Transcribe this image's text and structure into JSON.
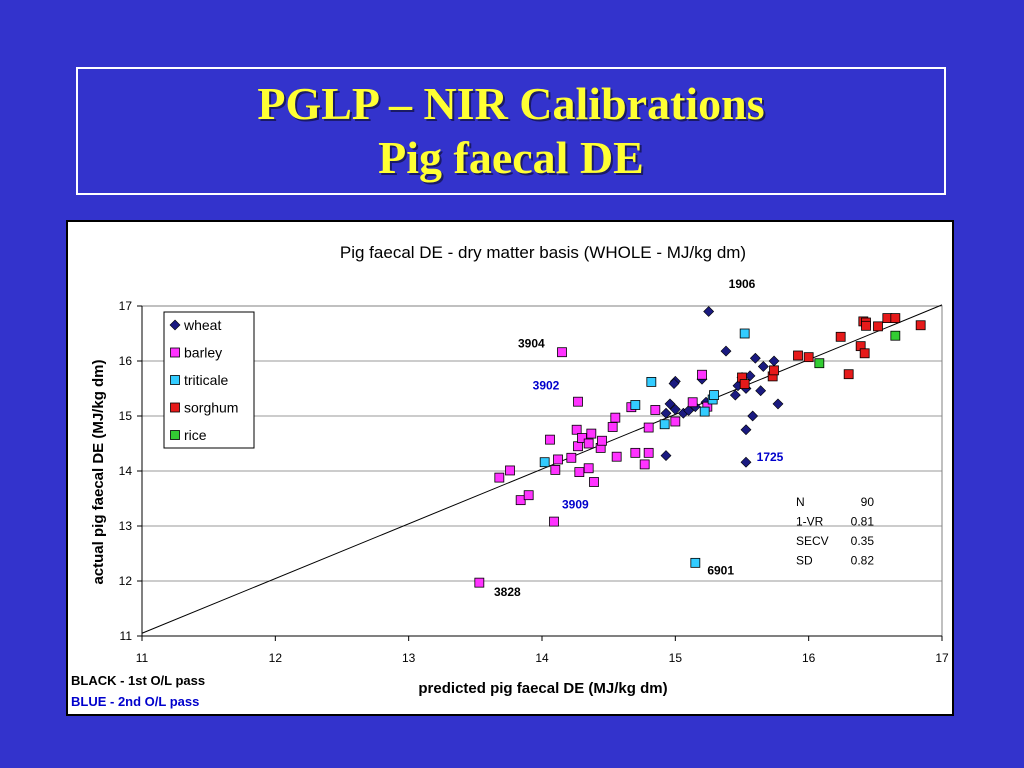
{
  "slide": {
    "title_line1": "PGLP – NIR Calibrations",
    "title_line2": "Pig faecal DE"
  },
  "colors": {
    "background": "#3333cc",
    "title": "#ffff33",
    "wheat": "#1a1a80",
    "barley": "#ff33ff",
    "triticale": "#33ccff",
    "sorghum": "#e61a1a",
    "rice": "#33cc33",
    "blue_text": "#0000cc"
  },
  "chart_data": {
    "type": "scatter",
    "title": "Pig faecal DE - dry matter basis (WHOLE - MJ/kg dm)",
    "xlabel": "predicted pig faecal DE (MJ/kg dm)",
    "ylabel": "actual pig faecal DE (MJ/kg dm)",
    "xlim": [
      11,
      17
    ],
    "ylim": [
      11,
      17
    ],
    "xticks": [
      "11",
      "12",
      "13",
      "14",
      "15",
      "16",
      "17"
    ],
    "yticks": [
      "11",
      "12",
      "13",
      "14",
      "15",
      "16",
      "17"
    ],
    "grid": "horizontal",
    "legend_position": "top-left",
    "reference_line": [
      [
        11,
        11.05
      ],
      [
        17,
        17.02
      ]
    ],
    "series": [
      {
        "name": "wheat",
        "marker": "diamond",
        "points": [
          [
            15.25,
            16.9
          ],
          [
            15.38,
            16.18
          ],
          [
            15.6,
            16.05
          ],
          [
            15.74,
            16.0
          ],
          [
            15.66,
            15.9
          ],
          [
            15.2,
            15.67
          ],
          [
            15.47,
            15.55
          ],
          [
            15.56,
            15.73
          ],
          [
            15.45,
            15.38
          ],
          [
            15.5,
            15.7
          ],
          [
            15.53,
            15.5
          ],
          [
            15.64,
            15.46
          ],
          [
            15.77,
            15.22
          ],
          [
            15.58,
            15.0
          ],
          [
            15.53,
            14.75
          ],
          [
            15.53,
            14.16
          ],
          [
            14.96,
            15.22
          ],
          [
            15.0,
            15.63
          ],
          [
            14.99,
            15.59
          ],
          [
            15.06,
            15.05
          ],
          [
            15.1,
            15.1
          ],
          [
            15.15,
            15.17
          ],
          [
            15.23,
            15.25
          ],
          [
            14.93,
            15.05
          ],
          [
            14.93,
            14.28
          ],
          [
            15.0,
            15.12
          ]
        ]
      },
      {
        "name": "barley",
        "marker": "square",
        "points": [
          [
            13.53,
            11.97
          ],
          [
            13.68,
            13.88
          ],
          [
            13.76,
            14.01
          ],
          [
            13.84,
            13.47
          ],
          [
            13.9,
            13.56
          ],
          [
            14.06,
            14.57
          ],
          [
            14.09,
            13.08
          ],
          [
            14.1,
            14.02
          ],
          [
            14.12,
            14.21
          ],
          [
            14.15,
            16.16
          ],
          [
            14.22,
            14.24
          ],
          [
            14.26,
            14.75
          ],
          [
            14.27,
            15.26
          ],
          [
            14.27,
            14.45
          ],
          [
            14.28,
            13.98
          ],
          [
            14.3,
            14.6
          ],
          [
            14.35,
            14.05
          ],
          [
            14.35,
            14.5
          ],
          [
            14.37,
            14.68
          ],
          [
            14.39,
            13.8
          ],
          [
            14.44,
            14.42
          ],
          [
            14.45,
            14.55
          ],
          [
            14.53,
            14.8
          ],
          [
            14.55,
            14.97
          ],
          [
            14.56,
            14.26
          ],
          [
            14.67,
            15.16
          ],
          [
            14.7,
            14.33
          ],
          [
            14.77,
            14.12
          ],
          [
            14.8,
            14.33
          ],
          [
            14.8,
            14.79
          ],
          [
            14.85,
            15.11
          ],
          [
            15.0,
            14.9
          ],
          [
            15.13,
            15.25
          ],
          [
            15.2,
            15.75
          ],
          [
            15.24,
            15.17
          ]
        ]
      },
      {
        "name": "triticale",
        "marker": "square",
        "points": [
          [
            14.02,
            14.16
          ],
          [
            14.7,
            15.2
          ],
          [
            14.82,
            15.62
          ],
          [
            14.92,
            14.85
          ],
          [
            15.22,
            15.08
          ],
          [
            15.28,
            15.3
          ],
          [
            15.29,
            15.38
          ],
          [
            15.52,
            16.5
          ],
          [
            15.15,
            12.33
          ]
        ]
      },
      {
        "name": "sorghum",
        "marker": "square",
        "points": [
          [
            15.5,
            15.7
          ],
          [
            15.52,
            15.58
          ],
          [
            15.73,
            15.72
          ],
          [
            15.74,
            15.83
          ],
          [
            15.92,
            16.1
          ],
          [
            16.0,
            16.07
          ],
          [
            16.24,
            16.44
          ],
          [
            16.3,
            15.76
          ],
          [
            16.39,
            16.27
          ],
          [
            16.41,
            16.72
          ],
          [
            16.42,
            16.14
          ],
          [
            16.43,
            16.7
          ],
          [
            16.43,
            16.64
          ],
          [
            16.52,
            16.63
          ],
          [
            16.59,
            16.78
          ],
          [
            16.65,
            16.78
          ],
          [
            16.84,
            16.65
          ]
        ]
      },
      {
        "name": "rice",
        "marker": "square",
        "points": [
          [
            16.08,
            15.96
          ],
          [
            16.65,
            16.46
          ]
        ]
      }
    ],
    "annotations": [
      {
        "text": "1906",
        "x": 15.4,
        "y": 17.33,
        "color": "black"
      },
      {
        "text": "3904",
        "x": 13.82,
        "y": 16.25,
        "color": "black"
      },
      {
        "text": "3902",
        "x": 13.93,
        "y": 15.48,
        "color": "blue"
      },
      {
        "text": "1725",
        "x": 15.61,
        "y": 14.18,
        "color": "blue"
      },
      {
        "text": "3909",
        "x": 14.15,
        "y": 13.32,
        "color": "blue"
      },
      {
        "text": "6901",
        "x": 15.24,
        "y": 12.12,
        "color": "black"
      },
      {
        "text": "3828",
        "x": 13.64,
        "y": 11.73,
        "color": "black"
      }
    ],
    "stats": [
      {
        "label": "N",
        "value": "90"
      },
      {
        "label": "1-VR",
        "value": "0.81"
      },
      {
        "label": "SECV",
        "value": "0.35"
      },
      {
        "label": "SD",
        "value": "0.82"
      }
    ],
    "notes": [
      {
        "text": "BLACK - 1st O/L pass",
        "color": "black"
      },
      {
        "text": "BLUE - 2nd O/L pass",
        "color": "blue"
      }
    ]
  }
}
